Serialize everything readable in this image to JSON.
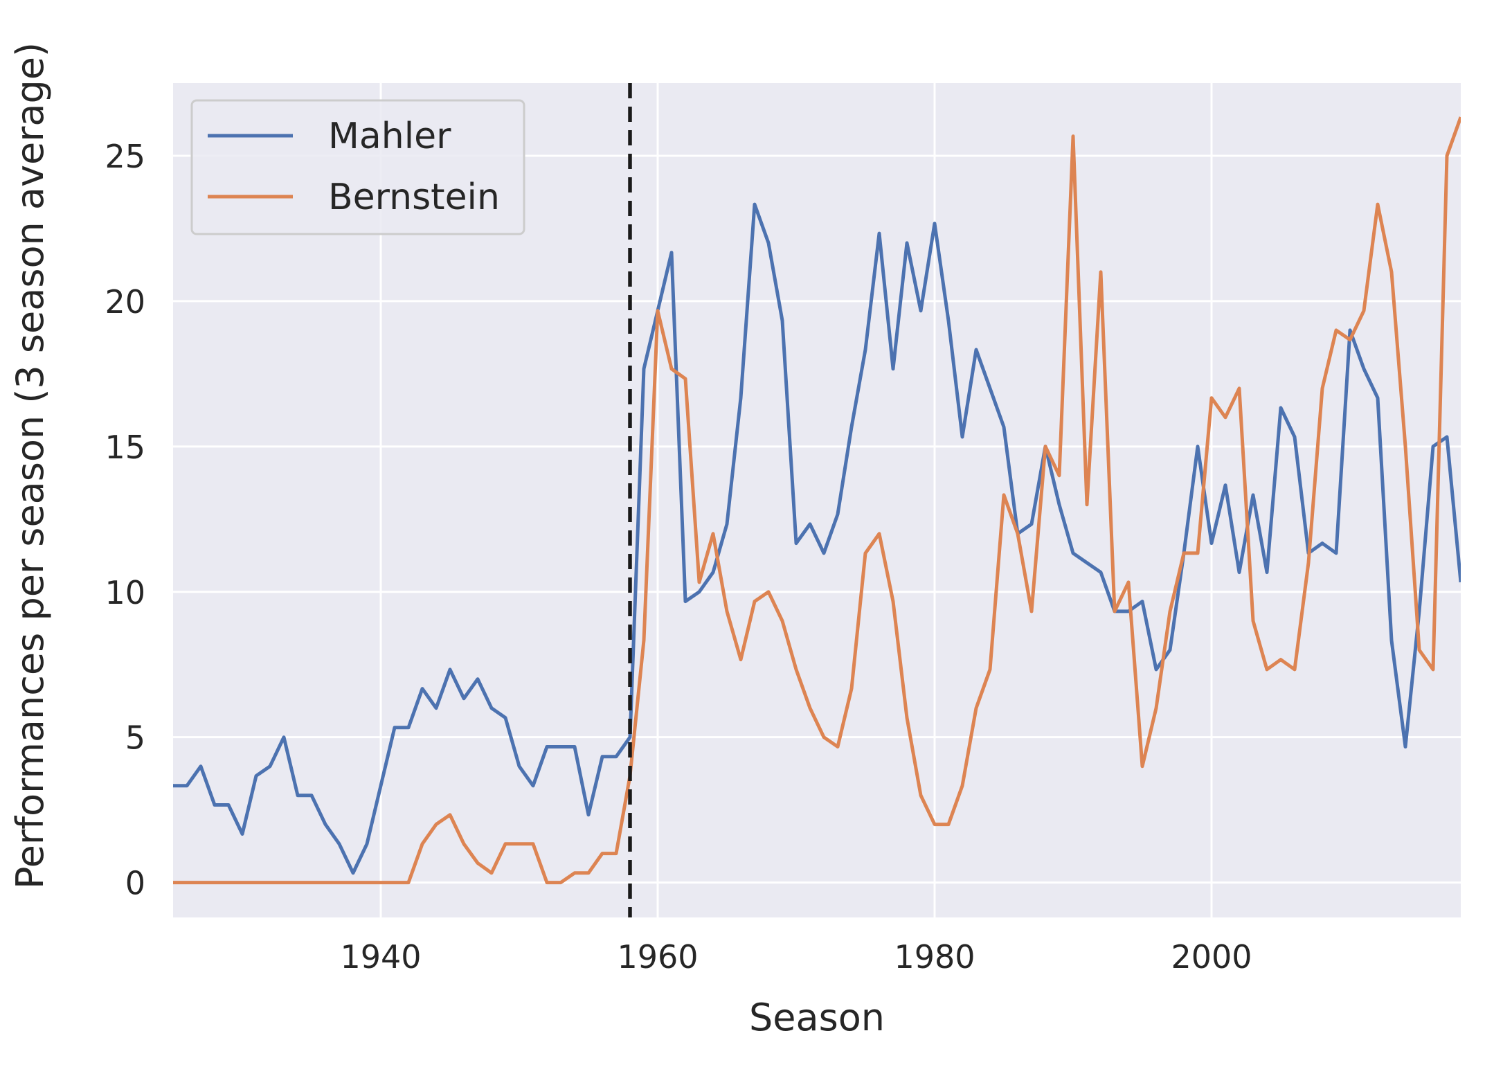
{
  "chart_data": {
    "type": "line",
    "title": "",
    "xlabel": "Season",
    "ylabel": "Performances per season (3 season average)",
    "xlim": [
      1925,
      2018
    ],
    "ylim": [
      -1.2,
      27.5
    ],
    "xticks": [
      1940,
      1960,
      1980,
      2000
    ],
    "yticks": [
      0,
      5,
      10,
      15,
      20,
      25
    ],
    "grid": true,
    "legend_position": "top-left",
    "vline": {
      "x": 1958,
      "style": "dashed",
      "color": "#1a1a1a"
    },
    "colors": {
      "background": "#eaeaf2",
      "grid": "#ffffff",
      "Mahler": "#4c72b0",
      "Bernstein": "#dd8452"
    },
    "series": [
      {
        "name": "Mahler",
        "x": [
          1925,
          1926,
          1927,
          1928,
          1929,
          1930,
          1931,
          1932,
          1933,
          1934,
          1935,
          1936,
          1937,
          1938,
          1939,
          1940,
          1941,
          1942,
          1943,
          1944,
          1945,
          1946,
          1947,
          1948,
          1949,
          1950,
          1951,
          1952,
          1953,
          1954,
          1955,
          1956,
          1957,
          1958,
          1959,
          1960,
          1961,
          1962,
          1963,
          1964,
          1965,
          1966,
          1967,
          1968,
          1969,
          1970,
          1971,
          1972,
          1973,
          1974,
          1975,
          1976,
          1977,
          1978,
          1979,
          1980,
          1981,
          1982,
          1983,
          1984,
          1985,
          1986,
          1987,
          1988,
          1989,
          1990,
          1991,
          1992,
          1993,
          1994,
          1995,
          1996,
          1997,
          1998,
          1999,
          2000,
          2001,
          2002,
          2003,
          2004,
          2005,
          2006,
          2007,
          2008,
          2009,
          2010,
          2011,
          2012,
          2013,
          2014,
          2015,
          2016,
          2017,
          2018
        ],
        "values": [
          3.33,
          3.33,
          4.0,
          2.67,
          2.67,
          1.67,
          3.67,
          4.0,
          5.0,
          3.0,
          3.0,
          2.0,
          1.33,
          0.33,
          1.33,
          3.33,
          5.33,
          5.33,
          6.67,
          6.0,
          7.33,
          6.33,
          7.0,
          6.0,
          5.67,
          4.0,
          3.33,
          4.67,
          4.67,
          4.67,
          2.33,
          4.33,
          4.33,
          5.0,
          17.67,
          19.67,
          21.67,
          9.67,
          10.0,
          10.67,
          12.33,
          16.67,
          23.33,
          22.0,
          19.33,
          11.67,
          12.33,
          11.33,
          12.67,
          15.67,
          18.33,
          22.33,
          17.67,
          22.0,
          19.67,
          22.67,
          19.33,
          15.33,
          18.33,
          17.0,
          15.67,
          12.0,
          12.33,
          15.0,
          13.0,
          11.33,
          11.0,
          10.67,
          9.33,
          9.33,
          9.67,
          7.33,
          8.0,
          11.33,
          15.0,
          11.67,
          13.67,
          10.67,
          13.33,
          10.67,
          16.33,
          15.33,
          11.33,
          11.67,
          11.33,
          19.0,
          17.67,
          16.67,
          8.33,
          4.67,
          9.33,
          15.0,
          15.33,
          10.33
        ]
      },
      {
        "name": "Bernstein",
        "x": [
          1925,
          1926,
          1927,
          1928,
          1929,
          1930,
          1931,
          1932,
          1933,
          1934,
          1935,
          1936,
          1937,
          1938,
          1939,
          1940,
          1941,
          1942,
          1943,
          1944,
          1945,
          1946,
          1947,
          1948,
          1949,
          1950,
          1951,
          1952,
          1953,
          1954,
          1955,
          1956,
          1957,
          1958,
          1959,
          1960,
          1961,
          1962,
          1963,
          1964,
          1965,
          1966,
          1967,
          1968,
          1969,
          1970,
          1971,
          1972,
          1973,
          1974,
          1975,
          1976,
          1977,
          1978,
          1979,
          1980,
          1981,
          1982,
          1983,
          1984,
          1985,
          1986,
          1987,
          1988,
          1989,
          1990,
          1991,
          1992,
          1993,
          1994,
          1995,
          1996,
          1997,
          1998,
          1999,
          2000,
          2001,
          2002,
          2003,
          2004,
          2005,
          2006,
          2007,
          2008,
          2009,
          2010,
          2011,
          2012,
          2013,
          2014,
          2015,
          2016,
          2017,
          2018
        ],
        "values": [
          0,
          0,
          0,
          0,
          0,
          0,
          0,
          0,
          0,
          0,
          0,
          0,
          0,
          0,
          0,
          0,
          0,
          0,
          1.33,
          2.0,
          2.33,
          1.33,
          0.67,
          0.33,
          1.33,
          1.33,
          1.33,
          0,
          0,
          0.33,
          0.33,
          1.0,
          1.0,
          3.67,
          8.33,
          19.67,
          17.67,
          17.33,
          10.33,
          12.0,
          9.33,
          7.67,
          9.67,
          10.0,
          9.0,
          7.33,
          6.0,
          5.0,
          4.67,
          6.67,
          11.33,
          12.0,
          9.67,
          5.67,
          3.0,
          2.0,
          2.0,
          3.33,
          6.0,
          7.33,
          13.33,
          12.0,
          9.33,
          15.0,
          14.0,
          25.67,
          13.0,
          21.0,
          9.33,
          10.33,
          4.0,
          6.0,
          9.33,
          11.33,
          11.33,
          16.67,
          16.0,
          17.0,
          9.0,
          7.33,
          7.67,
          7.33,
          11.0,
          17.0,
          19.0,
          18.67,
          19.67,
          23.33,
          21.0,
          15.0,
          8.0,
          7.33,
          25.0,
          26.33
        ]
      }
    ]
  }
}
